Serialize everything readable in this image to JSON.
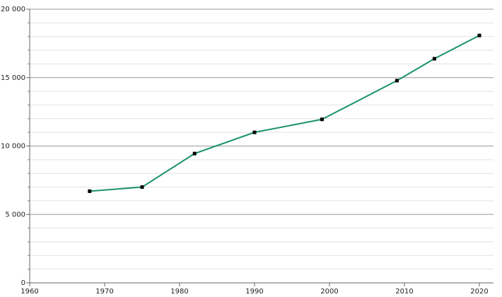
{
  "chart_data": {
    "type": "line",
    "x": [
      1968,
      1975,
      1982,
      1990,
      1999,
      2009,
      2014,
      2020
    ],
    "series": [
      {
        "color": "#1b9170",
        "marker_color": "#000000",
        "values": [
          6700,
          7000,
          9450,
          11000,
          11950,
          14780,
          16380,
          18080
        ]
      }
    ],
    "xlim": [
      1960,
      2020
    ],
    "xticks": [
      1960,
      1970,
      1980,
      1990,
      2000,
      2010,
      2020
    ],
    "ylim": [
      0,
      20000
    ],
    "yticks": [
      0,
      {
        "value": 5000,
        "label": "5 000"
      },
      {
        "value": 10000,
        "label": "10 000"
      },
      {
        "value": 15000,
        "label": "15 000"
      },
      {
        "value": 20000,
        "label": "20 000"
      }
    ],
    "yminorticks": [
      1000,
      2000,
      3000,
      4000,
      6000,
      7000,
      8000,
      9000,
      11000,
      12000,
      13000,
      14000,
      16000,
      17000,
      18000,
      19000
    ],
    "grid": true
  }
}
